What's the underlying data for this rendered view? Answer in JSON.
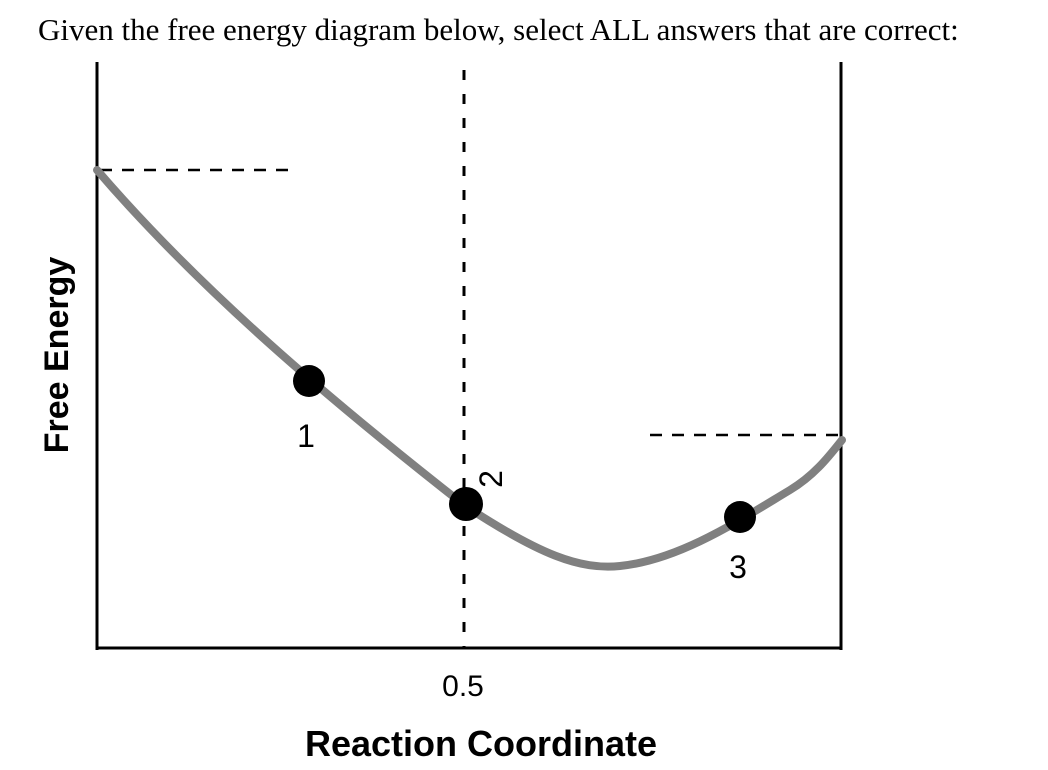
{
  "question": {
    "text": "Given the free energy diagram below, select ALL answers that are correct:"
  },
  "diagram": {
    "x_axis_label": "Reaction Coordinate",
    "y_axis_label": "Free Energy",
    "x_tick_label": "0.5",
    "points": [
      {
        "label": "1"
      },
      {
        "label": "2"
      },
      {
        "label": "3"
      }
    ],
    "colors": {
      "curve": "#808080",
      "axis": "#000000",
      "point": "#000000"
    }
  }
}
